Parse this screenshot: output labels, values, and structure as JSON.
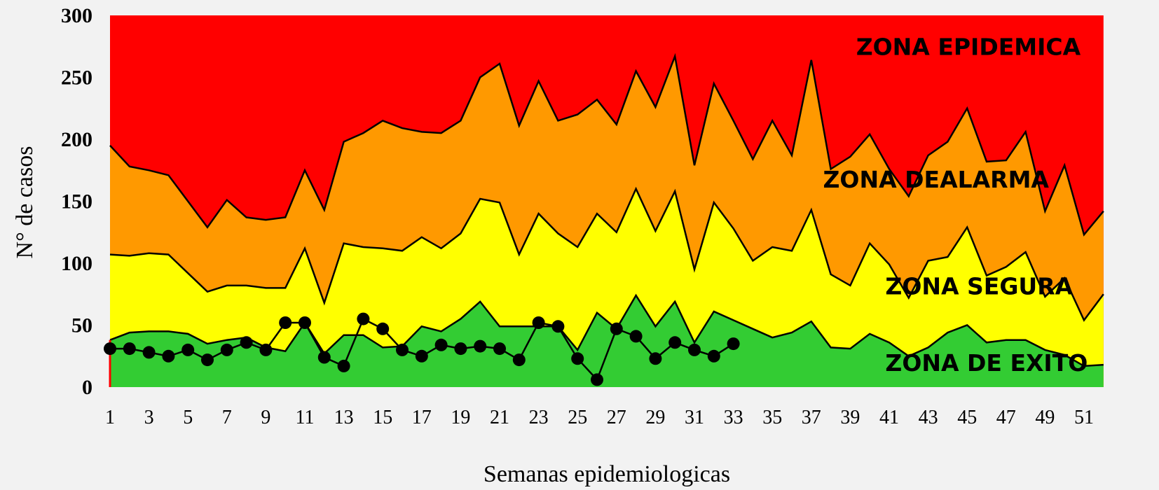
{
  "chart_data": {
    "type": "area",
    "title": "",
    "xlabel": "Semanas epidemiologicas",
    "ylabel": "N° de casos",
    "xlim": [
      1,
      52
    ],
    "ylim": [
      0,
      300
    ],
    "y_ticks": [
      "0",
      "50",
      "100",
      "150",
      "200",
      "250",
      "300"
    ],
    "x_ticks": [
      "1",
      "3",
      "5",
      "7",
      "9",
      "11",
      "13",
      "15",
      "17",
      "19",
      "21",
      "23",
      "25",
      "27",
      "29",
      "31",
      "33",
      "35",
      "37",
      "39",
      "41",
      "43",
      "45",
      "47",
      "49",
      "51"
    ],
    "x": [
      1,
      2,
      3,
      4,
      5,
      6,
      7,
      8,
      9,
      10,
      11,
      12,
      13,
      14,
      15,
      16,
      17,
      18,
      19,
      20,
      21,
      22,
      23,
      24,
      25,
      26,
      27,
      28,
      29,
      30,
      31,
      32,
      33,
      34,
      35,
      36,
      37,
      38,
      39,
      40,
      41,
      42,
      43,
      44,
      45,
      46,
      47,
      48,
      49,
      50,
      51,
      52
    ],
    "zones": [
      {
        "name": "ZONA DE EXITO",
        "color": "#33cc33",
        "values": [
          38,
          44,
          45,
          45,
          43,
          35,
          38,
          40,
          32,
          29,
          52,
          27,
          42,
          42,
          32,
          33,
          49,
          45,
          55,
          69,
          49,
          49,
          49,
          49,
          30,
          60,
          47,
          74,
          49,
          69,
          36,
          61,
          54,
          47,
          40,
          44,
          53,
          32,
          31,
          43,
          36,
          25,
          32,
          44,
          50,
          36,
          38,
          38,
          30,
          26,
          17,
          18
        ]
      },
      {
        "name": "ZONA SEGURA",
        "color": "#ffff00",
        "values": [
          107,
          106,
          108,
          107,
          92,
          77,
          82,
          82,
          80,
          80,
          112,
          68,
          116,
          113,
          112,
          110,
          121,
          112,
          124,
          152,
          149,
          107,
          140,
          124,
          113,
          140,
          125,
          160,
          126,
          158,
          95,
          149,
          128,
          102,
          113,
          110,
          143,
          91,
          82,
          116,
          99,
          72,
          102,
          105,
          129,
          90,
          97,
          109,
          73,
          88,
          54,
          75
        ]
      },
      {
        "name": "ZONA DEALARMA",
        "color": "#ff9900",
        "values": [
          195,
          178,
          175,
          171,
          150,
          129,
          151,
          137,
          135,
          137,
          175,
          143,
          198,
          205,
          215,
          209,
          206,
          205,
          215,
          250,
          261,
          211,
          247,
          215,
          220,
          232,
          212,
          255,
          226,
          267,
          179,
          245,
          215,
          184,
          215,
          187,
          264,
          176,
          186,
          204,
          176,
          154,
          187,
          198,
          225,
          182,
          183,
          206,
          142,
          179,
          123,
          142
        ]
      },
      {
        "name": "ZONA EPIDEMICA",
        "color": "#ff0000",
        "values": [
          300,
          300,
          300,
          300,
          300,
          300,
          300,
          300,
          300,
          300,
          300,
          300,
          300,
          300,
          300,
          300,
          300,
          300,
          300,
          300,
          300,
          300,
          300,
          300,
          300,
          300,
          300,
          300,
          300,
          300,
          300,
          300,
          300,
          300,
          300,
          300,
          300,
          300,
          300,
          300,
          300,
          300,
          300,
          300,
          300,
          300,
          300,
          300,
          300,
          300,
          300,
          300
        ]
      }
    ],
    "cases": {
      "x": [
        1,
        2,
        3,
        4,
        5,
        6,
        7,
        8,
        9,
        10,
        11,
        12,
        13,
        14,
        15,
        16,
        17,
        18,
        19,
        20,
        21,
        22,
        23,
        24,
        25,
        26,
        27,
        28,
        29,
        30,
        31,
        32,
        33
      ],
      "values": [
        31,
        31,
        28,
        25,
        30,
        22,
        30,
        36,
        30,
        52,
        52,
        24,
        17,
        55,
        47,
        30,
        25,
        34,
        31,
        33,
        31,
        22,
        52,
        49,
        23,
        6,
        47,
        41,
        23,
        36,
        30,
        25,
        35
      ],
      "color": "#000000"
    },
    "annotations": [
      {
        "text": "ZONA EPIDEMICA",
        "x": 39.3,
        "y": 268
      },
      {
        "text": "ZONA DEALARMA",
        "x": 37.6,
        "y": 161
      },
      {
        "text": "ZONA SEGURA",
        "x": 40.8,
        "y": 75
      },
      {
        "text": "ZONA DE EXITO",
        "x": 40.8,
        "y": 13
      }
    ]
  }
}
